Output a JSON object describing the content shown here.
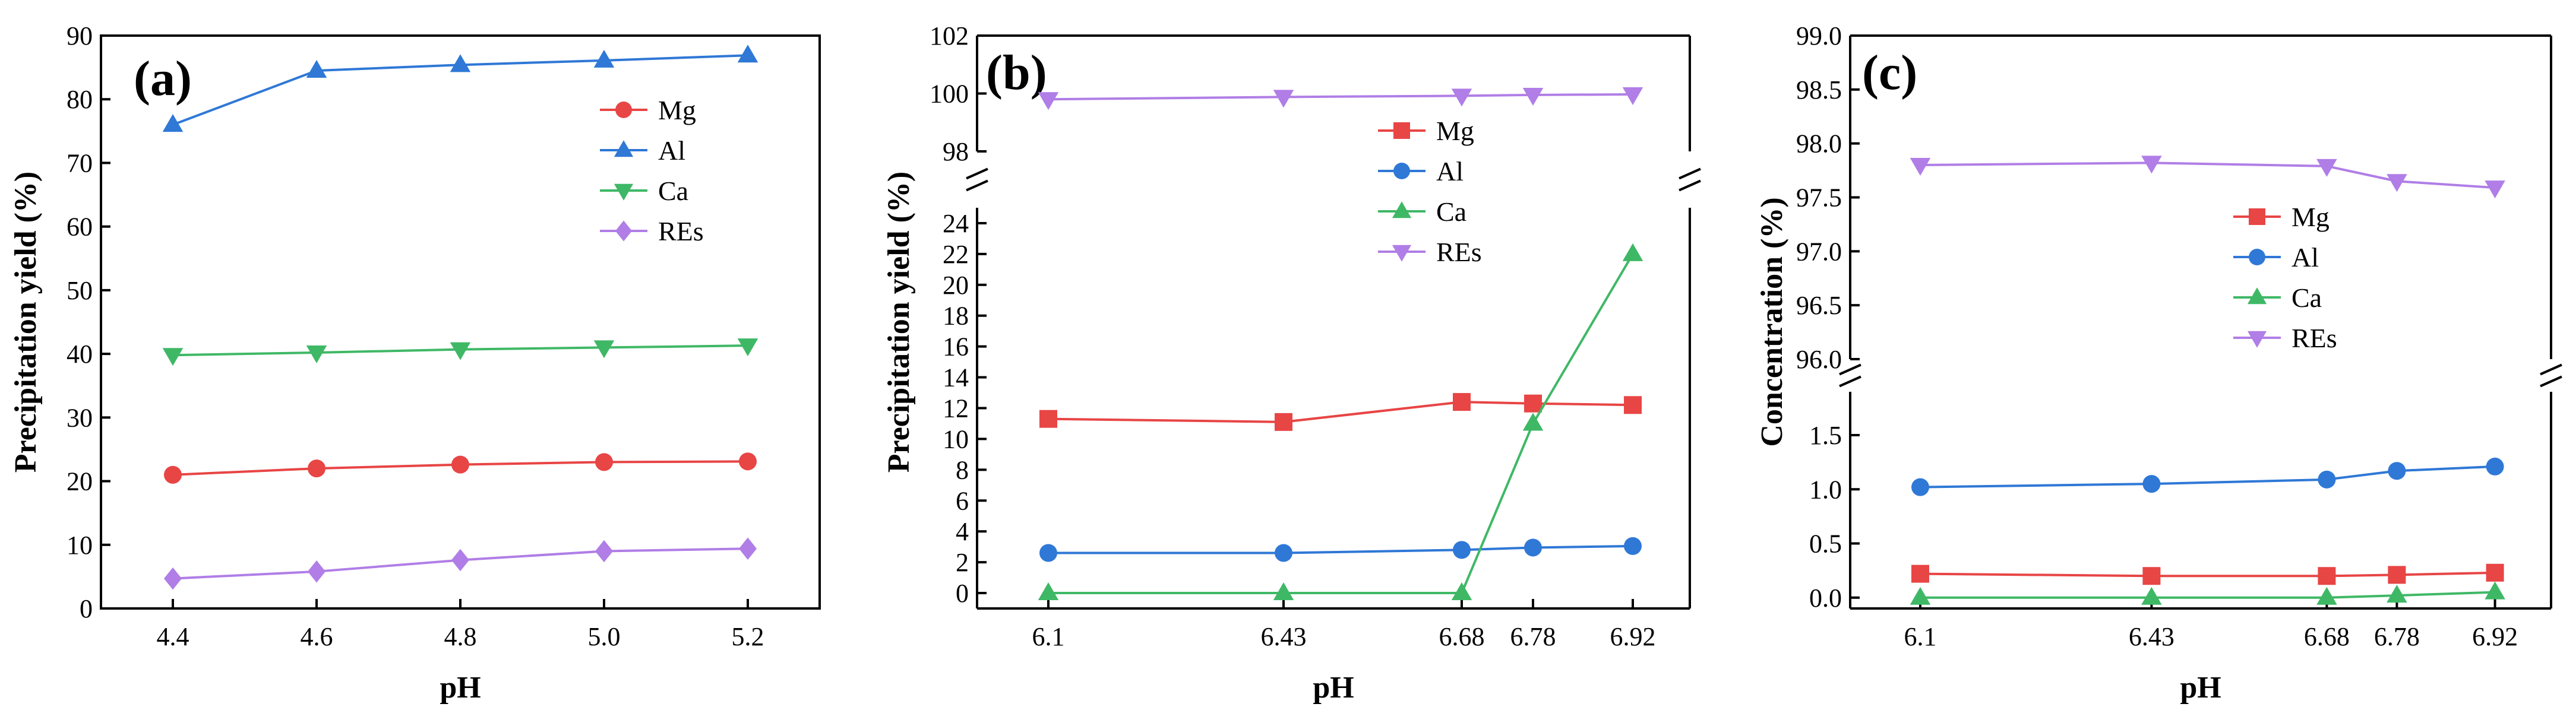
{
  "chart_data": [
    {
      "type": "line",
      "panel_label": "(a)",
      "xlabel": "pH",
      "ylabel": "Precipitation yield (%)",
      "x": [
        4.4,
        4.6,
        4.8,
        5.0,
        5.2
      ],
      "x_tick_labels": [
        "4.4",
        "4.6",
        "4.8",
        "5.0",
        "5.2"
      ],
      "xlim": [
        4.3,
        5.3
      ],
      "ylim": [
        0,
        90
      ],
      "y_ticks": [
        0,
        10,
        20,
        30,
        40,
        50,
        60,
        70,
        80,
        90
      ],
      "legend_position": "right",
      "series": [
        {
          "name": "Mg",
          "color": "#e84545",
          "marker": "circle",
          "values": [
            21.0,
            22.0,
            22.6,
            23.0,
            23.1
          ]
        },
        {
          "name": "Al",
          "color": "#2f78d6",
          "marker": "triangle-up",
          "values": [
            76.0,
            84.5,
            85.4,
            86.1,
            86.9
          ]
        },
        {
          "name": "Ca",
          "color": "#3fb866",
          "marker": "triangle-down",
          "values": [
            39.8,
            40.2,
            40.7,
            41.0,
            41.3
          ]
        },
        {
          "name": "REs",
          "color": "#b07ee6",
          "marker": "diamond",
          "values": [
            4.7,
            5.8,
            7.6,
            9.0,
            9.4
          ]
        }
      ]
    },
    {
      "type": "line",
      "panel_label": "(b)",
      "xlabel": "pH",
      "ylabel": "Precipitation yield (%)",
      "x": [
        6.1,
        6.43,
        6.68,
        6.78,
        6.92
      ],
      "x_tick_labels": [
        "6.1",
        "6.43",
        "6.68",
        "6.78",
        "6.92"
      ],
      "xlim": [
        6.0,
        7.0
      ],
      "broken_axis": {
        "lower": {
          "ylim": [
            -1,
            25
          ],
          "ticks": [
            0,
            2,
            4,
            6,
            8,
            10,
            12,
            14,
            16,
            18,
            20,
            22,
            24
          ]
        },
        "upper": {
          "ylim": [
            98,
            102
          ],
          "ticks": [
            98,
            100,
            102
          ]
        }
      },
      "legend_position": "right",
      "series": [
        {
          "name": "Mg",
          "color": "#e84545",
          "marker": "square",
          "values": [
            11.3,
            11.1,
            12.4,
            12.3,
            12.2
          ]
        },
        {
          "name": "Al",
          "color": "#2f78d6",
          "marker": "circle",
          "values": [
            2.6,
            2.6,
            2.8,
            2.95,
            3.05
          ]
        },
        {
          "name": "Ca",
          "color": "#3fb866",
          "marker": "triangle-up",
          "values": [
            0.0,
            0.0,
            0.0,
            11.0,
            22.0
          ]
        },
        {
          "name": "REs",
          "color": "#b07ee6",
          "marker": "triangle-down",
          "values": [
            99.8,
            99.88,
            99.92,
            99.95,
            99.97
          ]
        }
      ]
    },
    {
      "type": "line",
      "panel_label": "(c)",
      "xlabel": "pH",
      "ylabel": "Concentration  (%)",
      "x": [
        6.1,
        6.43,
        6.68,
        6.78,
        6.92
      ],
      "x_tick_labels": [
        "6.1",
        "6.43",
        "6.68",
        "6.78",
        "6.92"
      ],
      "xlim": [
        6.0,
        7.0
      ],
      "broken_axis": {
        "lower": {
          "ylim": [
            -0.1,
            1.9
          ],
          "ticks": [
            "0.0",
            "0.5",
            "1.0",
            "1.5"
          ]
        },
        "upper": {
          "ylim": [
            96.0,
            99.0
          ],
          "ticks": [
            "96.0",
            "96.5",
            "97.0",
            "97.5",
            "98.0",
            "98.5",
            "99.0"
          ]
        }
      },
      "legend_position": "right",
      "series": [
        {
          "name": "Mg",
          "color": "#e84545",
          "marker": "square",
          "values": [
            0.22,
            0.2,
            0.2,
            0.21,
            0.23
          ]
        },
        {
          "name": "Al",
          "color": "#2f78d6",
          "marker": "circle",
          "values": [
            1.02,
            1.05,
            1.09,
            1.17,
            1.21
          ]
        },
        {
          "name": "Ca",
          "color": "#3fb866",
          "marker": "triangle-up",
          "values": [
            0.0,
            0.0,
            0.0,
            0.02,
            0.05
          ]
        },
        {
          "name": "REs",
          "color": "#b07ee6",
          "marker": "triangle-down",
          "values": [
            97.8,
            97.82,
            97.79,
            97.65,
            97.59
          ]
        }
      ]
    }
  ]
}
